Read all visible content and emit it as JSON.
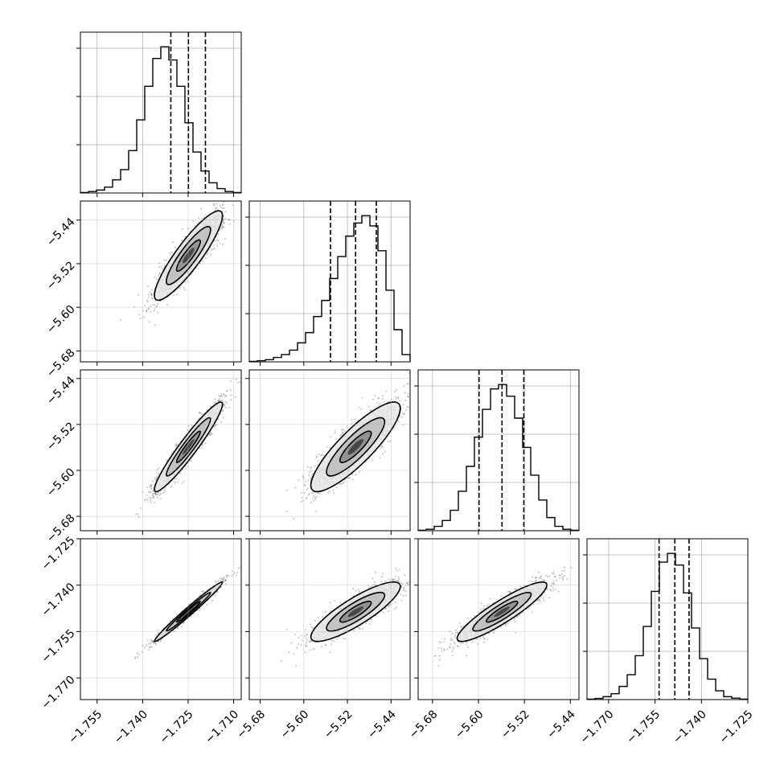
{
  "chart_data": {
    "type": "corner",
    "grid": true,
    "x_ticks": [
      [
        "−1.755",
        "−1.740",
        "−1.725",
        "−1.710"
      ],
      [
        "−5.68",
        "−5.60",
        "−5.52",
        "−5.44"
      ],
      [
        "−5.68",
        "−5.60",
        "−5.52",
        "−5.44"
      ],
      [
        "−1.770",
        "−1.755",
        "−1.740",
        "−1.725"
      ]
    ],
    "y_ticks": [
      null,
      [
        "−5.44",
        "−5.52",
        "−5.60",
        "−5.68"
      ],
      [
        "−5.44",
        "−5.52",
        "−5.60",
        "−5.68"
      ],
      [
        "−1.725",
        "−1.740",
        "−1.755",
        "−1.770"
      ]
    ],
    "histograms": [
      {
        "range": [
          -1.7605,
          -1.7075
        ],
        "quantiles": [
          -1.7307,
          -1.7249,
          -1.7193
        ],
        "counts": [
          0.3,
          1,
          2,
          4,
          9,
          16,
          29,
          50,
          73,
          92,
          100,
          91,
          73,
          48,
          28,
          15,
          7,
          3,
          1,
          0.3
        ]
      },
      {
        "range": [
          -5.7,
          -5.405
        ],
        "quantiles": [
          -5.551,
          -5.505,
          -5.467
        ],
        "counts": [
          0.3,
          0.8,
          1.5,
          3,
          5,
          8,
          13,
          20,
          31,
          42,
          57,
          72,
          86,
          95,
          100,
          93,
          76,
          49,
          22,
          5
        ]
      },
      {
        "range": [
          -5.705,
          -5.425
        ],
        "quantiles": [
          -5.599,
          -5.559,
          -5.521
        ],
        "counts": [
          0.3,
          1,
          3,
          7,
          14,
          27,
          44,
          64,
          83,
          97,
          100,
          92,
          77,
          57,
          38,
          21,
          9,
          3,
          1,
          0.3
        ]
      },
      {
        "range": [
          -1.777,
          -1.725
        ],
        "quantiles": [
          -1.7537,
          -1.7486,
          -1.744
        ],
        "counts": [
          0.3,
          0.8,
          2,
          4,
          9,
          17,
          30,
          50,
          74,
          94,
          100,
          92,
          73,
          49,
          28,
          14,
          6,
          2,
          1,
          0.3
        ]
      }
    ],
    "scatter_panels": [
      {
        "row": 1,
        "col": 0,
        "x_range": [
          -1.7605,
          -1.7075
        ],
        "y_range": [
          -5.7,
          -5.405
        ],
        "x_mean": -1.7249,
        "x_sd": 0.0056,
        "y_mean": -5.505,
        "y_sd": 0.041,
        "rho": 0.89
      },
      {
        "row": 2,
        "col": 0,
        "x_range": [
          -1.7605,
          -1.7075
        ],
        "y_range": [
          -5.705,
          -5.425
        ],
        "x_mean": -1.7249,
        "x_sd": 0.0056,
        "y_mean": -5.559,
        "y_sd": 0.039,
        "rho": 0.95
      },
      {
        "row": 2,
        "col": 1,
        "x_range": [
          -5.7,
          -5.405
        ],
        "y_range": [
          -5.705,
          -5.425
        ],
        "x_mean": -5.505,
        "x_sd": 0.041,
        "y_mean": -5.559,
        "y_sd": 0.039,
        "rho": 0.86
      },
      {
        "row": 3,
        "col": 0,
        "x_range": [
          -1.7605,
          -1.7075
        ],
        "y_range": [
          -1.777,
          -1.725
        ],
        "x_mean": -1.7249,
        "x_sd": 0.0056,
        "y_mean": -1.7486,
        "y_sd": 0.0048,
        "rho": 0.985
      },
      {
        "row": 3,
        "col": 1,
        "x_range": [
          -5.7,
          -5.405
        ],
        "y_range": [
          -1.777,
          -1.725
        ],
        "x_mean": -5.505,
        "x_sd": 0.041,
        "y_mean": -1.7486,
        "y_sd": 0.0048,
        "rho": 0.85
      },
      {
        "row": 3,
        "col": 2,
        "x_range": [
          -5.705,
          -5.425
        ],
        "y_range": [
          -1.777,
          -1.725
        ],
        "x_mean": -5.559,
        "x_sd": 0.039,
        "y_mean": -1.7486,
        "y_sd": 0.0048,
        "rho": 0.9
      }
    ]
  }
}
